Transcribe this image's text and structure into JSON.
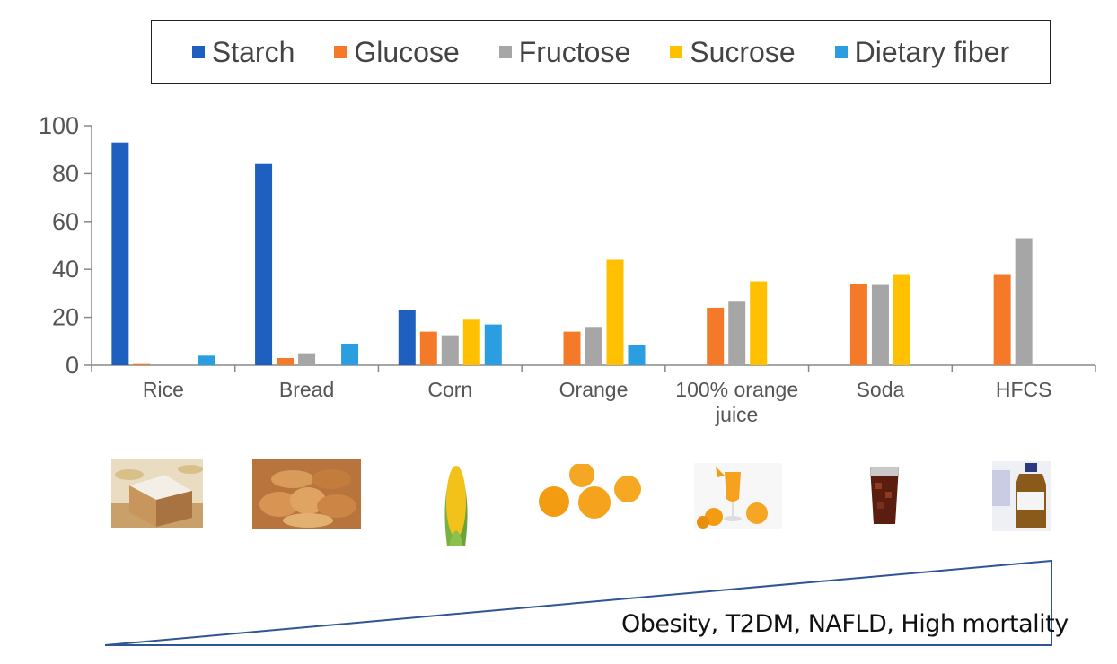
{
  "chart_data": {
    "type": "bar",
    "categories": [
      "Rice",
      "Bread",
      "Corn",
      "Orange",
      "100% orange juice",
      "Soda",
      "HFCS"
    ],
    "category_lines": [
      [
        "Rice"
      ],
      [
        "Bread"
      ],
      [
        "Corn"
      ],
      [
        "Orange"
      ],
      [
        "100% orange",
        "juice"
      ],
      [
        "Soda"
      ],
      [
        "HFCS"
      ]
    ],
    "series": [
      {
        "name": "Starch",
        "color": "#1f5fbf",
        "values": [
          93,
          84,
          23,
          0,
          0,
          0,
          0
        ]
      },
      {
        "name": "Glucose",
        "color": "#f47a2a",
        "values": [
          0.5,
          3,
          14,
          14,
          24,
          34,
          38
        ]
      },
      {
        "name": "Fructose",
        "color": "#a6a6a6",
        "values": [
          0,
          5,
          12.5,
          16,
          26.5,
          33.5,
          53
        ]
      },
      {
        "name": "Sucrose",
        "color": "#ffc000",
        "values": [
          0,
          0,
          19,
          44,
          35,
          38,
          0
        ]
      },
      {
        "name": "Dietary fiber",
        "color": "#2a9ee0",
        "values": [
          4,
          9,
          17,
          8.5,
          0,
          0,
          0
        ]
      }
    ],
    "yticks": [
      "0",
      "20",
      "40",
      "60",
      "80",
      "100"
    ],
    "ylim": [
      0,
      100
    ],
    "title": "",
    "xlabel": "",
    "ylabel": "",
    "legend_position": "top"
  },
  "annotation": {
    "text": "Obesity, T2DM, NAFLD, High mortality"
  },
  "colors": {
    "triangle_stroke": "#2f5597",
    "axis": "#888888"
  }
}
